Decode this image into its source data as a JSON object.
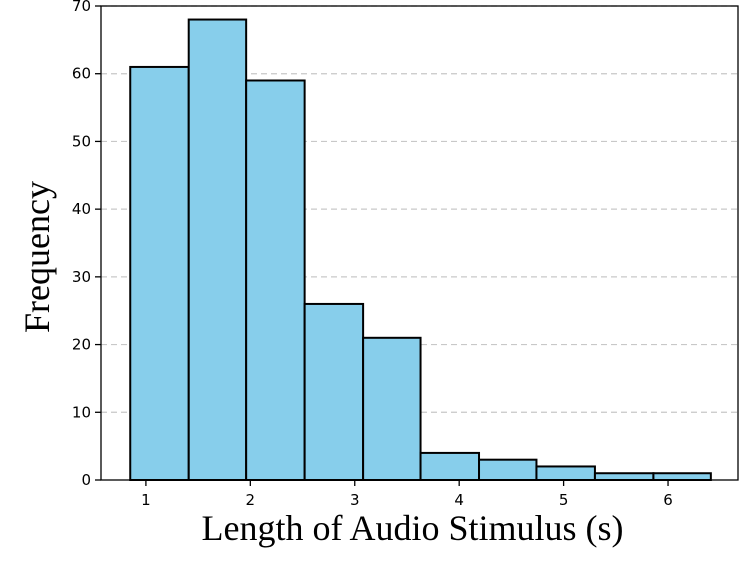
{
  "chart_data": {
    "type": "bar",
    "subtype": "histogram",
    "xlabel": "Length of Audio Stimulus (s)",
    "ylabel": "Frequency",
    "xlim": [
      0.57,
      6.67
    ],
    "ylim": [
      0,
      70
    ],
    "x_ticks": [
      1,
      2,
      3,
      4,
      5,
      6
    ],
    "y_ticks": [
      0,
      10,
      20,
      30,
      40,
      50,
      60,
      70
    ],
    "bins": [
      {
        "x0": 0.85,
        "x1": 1.41,
        "count": 61
      },
      {
        "x0": 1.41,
        "x1": 1.96,
        "count": 68
      },
      {
        "x0": 1.96,
        "x1": 2.52,
        "count": 59
      },
      {
        "x0": 2.52,
        "x1": 3.08,
        "count": 26
      },
      {
        "x0": 3.08,
        "x1": 3.63,
        "count": 21
      },
      {
        "x0": 3.63,
        "x1": 4.19,
        "count": 4
      },
      {
        "x0": 4.19,
        "x1": 4.74,
        "count": 3
      },
      {
        "x0": 4.74,
        "x1": 5.3,
        "count": 2
      },
      {
        "x0": 5.3,
        "x1": 5.86,
        "count": 1
      },
      {
        "x0": 5.86,
        "x1": 6.41,
        "count": 1
      }
    ],
    "bar_color": "#87ceeb",
    "edge_color": "#000000",
    "grid": "horizontal dashed",
    "legend": "none"
  }
}
